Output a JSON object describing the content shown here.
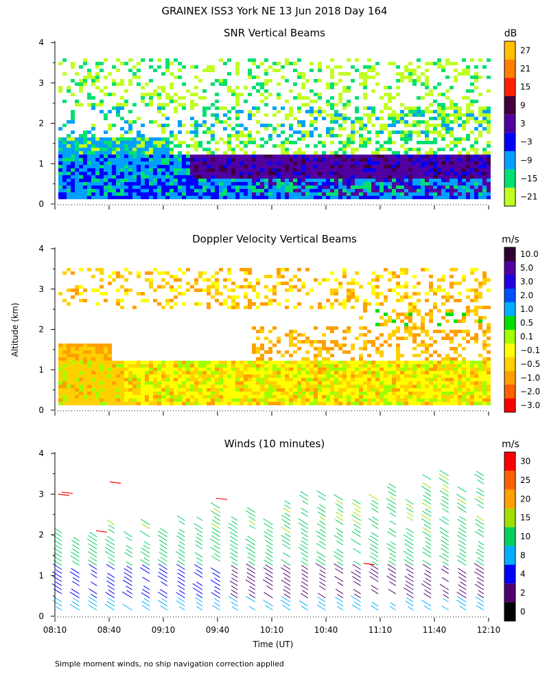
{
  "title": "GRAINEX ISS3 York NE  13 Jun 2018 Day 164",
  "y_axis_label": "Altitude (km)",
  "x_axis_label": "Time (UT)",
  "footnote": "Simple moment winds, no ship navigation correction applied",
  "chart_data": [
    {
      "type": "heatmap",
      "title": "SNR Vertical Beams",
      "xlabel": "",
      "ylabel": "Altitude (km)",
      "ylim": [
        0,
        4
      ],
      "y_ticks": [
        "0",
        "1",
        "2",
        "3",
        "4"
      ],
      "colorbar": {
        "unit": "dB",
        "labels": [
          "27",
          "21",
          "15",
          "9",
          "3",
          "−3",
          "−9",
          "−15",
          "−21"
        ],
        "colors": [
          "#ffc000",
          "#ff7f00",
          "#ff2000",
          "#400040",
          "#5000a0",
          "#0000ff",
          "#00a0ff",
          "#00e070",
          "#c0ff20"
        ]
      }
    },
    {
      "type": "heatmap",
      "title": "Doppler Velocity Vertical Beams",
      "xlabel": "",
      "ylabel": "Altitude (km)",
      "ylim": [
        0,
        4
      ],
      "y_ticks": [
        "0",
        "1",
        "2",
        "3",
        "4"
      ],
      "colorbar": {
        "unit": "m/s",
        "labels": [
          "10.0",
          "5.0",
          "3.0",
          "2.0",
          "1.0",
          "0.5",
          "0.1",
          "−0.1",
          "−0.5",
          "−1.0",
          "−2.0",
          "−3.0"
        ],
        "colors": [
          "#300030",
          "#5000a0",
          "#2000e0",
          "#0050ff",
          "#00b0ff",
          "#00e000",
          "#a0ff00",
          "#ffff00",
          "#ffd000",
          "#ffa000",
          "#ff6000",
          "#ff0000"
        ]
      }
    },
    {
      "type": "scatter",
      "title": "Winds (10 minutes)",
      "xlabel": "Time (UT)",
      "ylabel": "Altitude (km)",
      "ylim": [
        0,
        4
      ],
      "y_ticks": [
        "0",
        "1",
        "2",
        "3",
        "4"
      ],
      "x_ticks": [
        "08:10",
        "08:40",
        "09:10",
        "09:40",
        "10:10",
        "10:40",
        "11:10",
        "11:40",
        "12:10"
      ],
      "colorbar": {
        "unit": "m/s",
        "labels": [
          "30",
          "25",
          "20",
          "15",
          "10",
          "8",
          "4",
          "2",
          "0"
        ],
        "colors": [
          "#ff0000",
          "#ff6000",
          "#ffa000",
          "#a0e000",
          "#00d060",
          "#00b0ff",
          "#0000ff",
          "#500070",
          "#000000"
        ]
      }
    }
  ]
}
